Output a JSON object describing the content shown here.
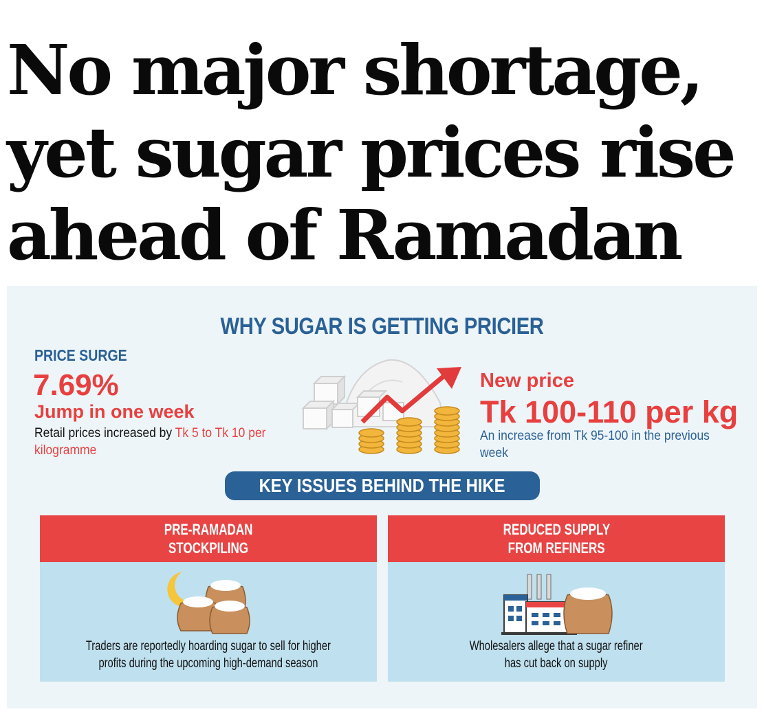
{
  "headline": {
    "lines": [
      "No major shortage,",
      "yet sugar prices rise",
      "ahead of Ramadan"
    ]
  },
  "infographic": {
    "title": "WHY SUGAR IS GETTING PRICIER",
    "price_surge": {
      "label": "PRICE SURGE",
      "percent": "7.69%",
      "subtitle": "Jump in one week",
      "desc_prefix": "Retail prices increased by ",
      "desc_highlight": "Tk 5 to Tk 10 per kilogramme"
    },
    "new_price": {
      "label": "New price",
      "value": "Tk 100-110 per kg",
      "desc": "An increase from Tk 95-100 in the previous week"
    },
    "key_issues_title": "KEY ISSUES BEHIND THE HIKE",
    "issues": [
      {
        "heading_line1": "PRE-RAMADAN",
        "heading_line2": "STOCKPILING",
        "text_line1": "Traders are reportedly hoarding sugar to sell for higher",
        "text_line2": "profits during the upcoming high-demand season"
      },
      {
        "heading_line1": "REDUCED SUPPLY",
        "heading_line2": "FROM REFINERS",
        "text_line1": "Wholesalers allege that a sugar refiner",
        "text_line2": "has cut back on supply"
      }
    ],
    "colors": {
      "blue": "#2a6196",
      "red": "#e83f3f",
      "card_bg": "#bfe0ee",
      "panel_bg": "#eef5f8"
    }
  }
}
